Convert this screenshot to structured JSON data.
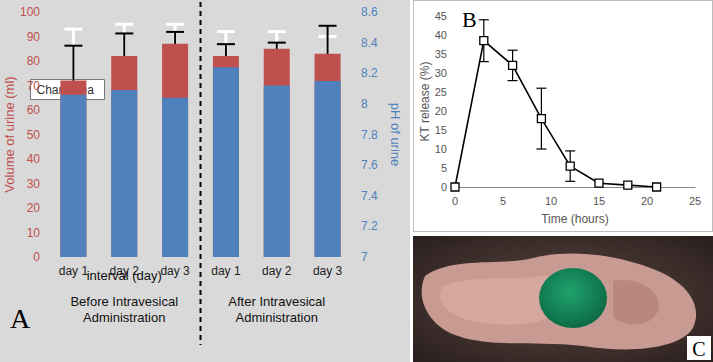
{
  "chart_data": [
    {
      "type": "bar",
      "panel_label": "A",
      "annotation": "Chart Area",
      "xlabel": "interval (day)",
      "group_labels": [
        "Before Intravesical Administration",
        "After Intravesical Administration"
      ],
      "categories": [
        "day 1",
        "day 2",
        "day 3",
        "day 1",
        "day 2",
        "day 3"
      ],
      "ylabel": "Volume of urine (ml)",
      "y2label": "pH of urine",
      "ylim": [
        0,
        100
      ],
      "yticks": [
        0,
        10,
        20,
        30,
        40,
        50,
        60,
        70,
        80,
        90,
        100
      ],
      "y2lim": [
        7,
        8.6
      ],
      "y2ticks": [
        7,
        7.2,
        7.4,
        7.6,
        7.8,
        8,
        8.2,
        8.4,
        8.6
      ],
      "grid": false,
      "series": [
        {
          "color": "#c0504d",
          "values": [
            72,
            82,
            87,
            82,
            85,
            83
          ],
          "errors": [
            21,
            13,
            8,
            10,
            7,
            7
          ]
        },
        {
          "color": "#4f81bd",
          "axis": "y2",
          "values": [
            8.06,
            8.09,
            8.04,
            8.24,
            8.12,
            8.15
          ],
          "errors": [
            0.32,
            0.37,
            0.43,
            0.15,
            0.28,
            0.36
          ]
        }
      ]
    },
    {
      "type": "line",
      "panel_label": "B",
      "xlabel": "Time (hours)",
      "ylabel": "KT release (%)",
      "x": [
        0,
        3,
        6,
        9,
        12,
        15,
        18,
        21
      ],
      "xlim": [
        0,
        25
      ],
      "xticks": [
        0,
        5,
        10,
        15,
        20,
        25
      ],
      "ylim": [
        0,
        45
      ],
      "yticks": [
        0,
        5,
        10,
        15,
        20,
        25,
        30,
        35,
        40,
        45
      ],
      "grid": false,
      "series": [
        {
          "color": "#000000",
          "marker": "square",
          "line_style": "solid",
          "values": [
            0,
            38.5,
            32,
            18,
            5.5,
            1,
            0.5,
            0
          ],
          "errors": [
            0,
            5.5,
            4,
            8,
            4,
            0,
            0,
            0
          ]
        }
      ]
    }
  ],
  "image": {
    "panel_label": "C"
  }
}
